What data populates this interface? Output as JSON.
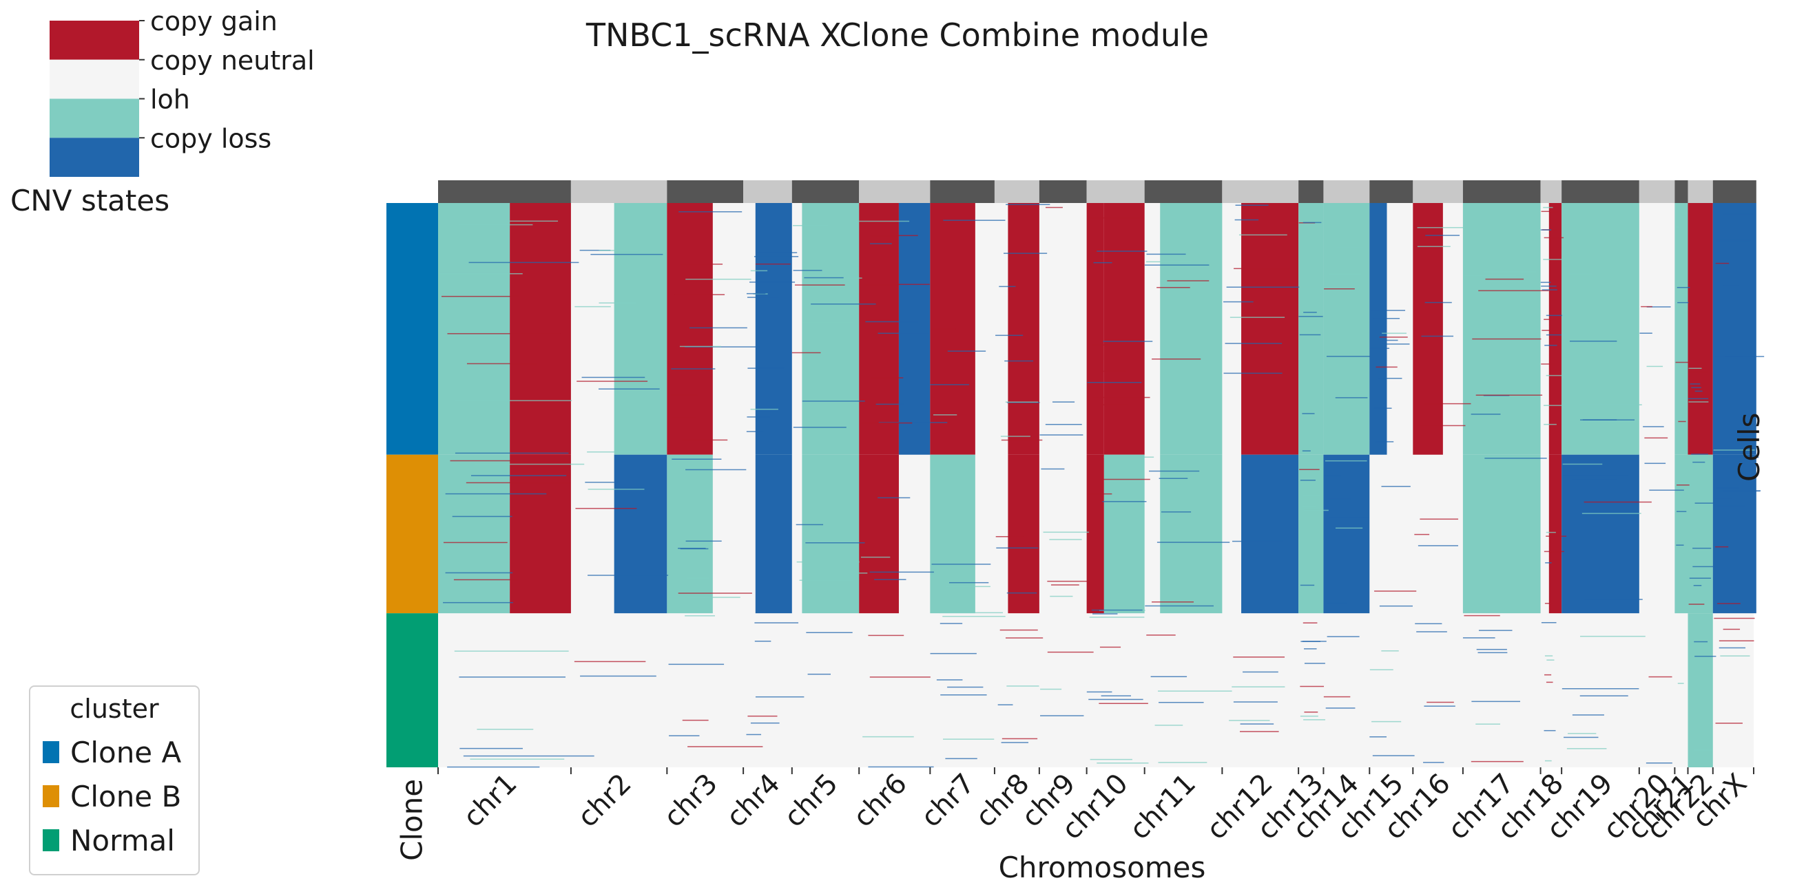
{
  "chart_data": {
    "type": "heatmap",
    "title": "TNBC1_scRNA XClone Combine module",
    "xlabel": "Chromosomes",
    "ylabel": "Cells",
    "clone_axis_label": "Clone",
    "cnv_legend": {
      "title": "CNV states",
      "states": [
        {
          "label": "copy gain",
          "color": "#b2182b"
        },
        {
          "label": "copy neutral",
          "color": "#f5f5f5"
        },
        {
          "label": "loh",
          "color": "#80cdc1"
        },
        {
          "label": "copy loss",
          "color": "#2166ac"
        }
      ]
    },
    "cluster_legend": {
      "title": "cluster",
      "items": [
        {
          "label": "Clone A",
          "color": "#0173b2"
        },
        {
          "label": "Clone B",
          "color": "#de8f05"
        },
        {
          "label": "Normal",
          "color": "#029e73"
        }
      ]
    },
    "clone_fractions": {
      "Clone A": 0.446,
      "Clone B": 0.281,
      "Normal": 0.273
    },
    "chromosomes": [
      "chr1",
      "chr2",
      "chr3",
      "chr4",
      "chr5",
      "chr6",
      "chr7",
      "chr8",
      "chr9",
      "chr10",
      "chr11",
      "chr12",
      "chr13",
      "chr14",
      "chr15",
      "chr16",
      "chr17",
      "chr18",
      "chr19",
      "chr20",
      "chr21",
      "chr22",
      "chrX"
    ],
    "chromosome_width_fraction": [
      0.101,
      0.073,
      0.058,
      0.037,
      0.051,
      0.054,
      0.049,
      0.034,
      0.036,
      0.044,
      0.059,
      0.058,
      0.019,
      0.035,
      0.033,
      0.038,
      0.059,
      0.016,
      0.059,
      0.027,
      0.01,
      0.019,
      0.033
    ],
    "state_blocks": [
      {
        "chr": "chr1",
        "from": 0.0,
        "to": 0.54,
        "clones": {
          "Clone A": "loh",
          "Clone B": "loh",
          "Normal": "copy neutral"
        }
      },
      {
        "chr": "chr1",
        "from": 0.54,
        "to": 1.0,
        "clones": {
          "Clone A": "copy gain",
          "Clone B": "copy gain",
          "Normal": "copy neutral"
        }
      },
      {
        "chr": "chr2",
        "from": 0.45,
        "to": 1.0,
        "clones": {
          "Clone A": "loh",
          "Clone B": "copy loss",
          "Normal": "copy neutral"
        }
      },
      {
        "chr": "chr3",
        "from": 0.0,
        "to": 0.6,
        "clones": {
          "Clone A": "copy gain",
          "Clone B": "loh",
          "Normal": "copy neutral"
        }
      },
      {
        "chr": "chr4",
        "from": 0.25,
        "to": 1.0,
        "clones": {
          "Clone A": "copy loss",
          "Clone B": "copy loss",
          "Normal": "copy neutral"
        }
      },
      {
        "chr": "chr5",
        "from": 0.15,
        "to": 1.0,
        "clones": {
          "Clone A": "loh",
          "Clone B": "loh",
          "Normal": "copy neutral"
        }
      },
      {
        "chr": "chr6",
        "from": 0.0,
        "to": 0.56,
        "clones": {
          "Clone A": "copy gain",
          "Clone B": "copy gain",
          "Normal": "copy neutral"
        }
      },
      {
        "chr": "chr6",
        "from": 0.56,
        "to": 1.0,
        "clones": {
          "Clone A": "copy loss",
          "Clone B": "copy neutral",
          "Normal": "copy neutral"
        }
      },
      {
        "chr": "chr7",
        "from": 0.0,
        "to": 0.7,
        "clones": {
          "Clone A": "copy gain",
          "Clone B": "loh",
          "Normal": "copy neutral"
        }
      },
      {
        "chr": "chr8",
        "from": 0.3,
        "to": 1.0,
        "clones": {
          "Clone A": "copy gain",
          "Clone B": "copy gain",
          "Normal": "copy neutral"
        }
      },
      {
        "chr": "chr10",
        "from": 0.0,
        "to": 0.3,
        "clones": {
          "Clone A": "copy gain",
          "Clone B": "copy gain",
          "Normal": "copy neutral"
        }
      },
      {
        "chr": "chr10",
        "from": 0.3,
        "to": 1.0,
        "clones": {
          "Clone A": "copy gain",
          "Clone B": "loh",
          "Normal": "copy neutral"
        }
      },
      {
        "chr": "chr11",
        "from": 0.2,
        "to": 1.0,
        "clones": {
          "Clone A": "loh",
          "Clone B": "loh",
          "Normal": "copy neutral"
        }
      },
      {
        "chr": "chr12",
        "from": 0.25,
        "to": 1.0,
        "clones": {
          "Clone A": "copy gain",
          "Clone B": "copy loss",
          "Normal": "copy neutral"
        }
      },
      {
        "chr": "chr13",
        "from": 0.0,
        "to": 1.0,
        "clones": {
          "Clone A": "loh",
          "Clone B": "loh",
          "Normal": "copy neutral"
        }
      },
      {
        "chr": "chr14",
        "from": 0.0,
        "to": 1.0,
        "clones": {
          "Clone A": "loh",
          "Clone B": "copy loss",
          "Normal": "copy neutral"
        }
      },
      {
        "chr": "chr15",
        "from": 0.0,
        "to": 0.4,
        "clones": {
          "Clone A": "copy loss",
          "Clone B": "copy neutral",
          "Normal": "copy neutral"
        }
      },
      {
        "chr": "chr16",
        "from": 0.0,
        "to": 0.6,
        "clones": {
          "Clone A": "copy gain",
          "Clone B": "copy neutral",
          "Normal": "copy neutral"
        }
      },
      {
        "chr": "chr17",
        "from": 0.0,
        "to": 1.0,
        "clones": {
          "Clone A": "loh",
          "Clone B": "loh",
          "Normal": "copy neutral"
        }
      },
      {
        "chr": "chr18",
        "from": 0.4,
        "to": 1.0,
        "clones": {
          "Clone A": "copy gain",
          "Clone B": "copy gain",
          "Normal": "copy neutral"
        }
      },
      {
        "chr": "chr19",
        "from": 0.0,
        "to": 1.0,
        "clones": {
          "Clone A": "loh",
          "Clone B": "copy loss",
          "Normal": "copy neutral"
        }
      },
      {
        "chr": "chr21",
        "from": 0.0,
        "to": 1.0,
        "clones": {
          "Clone A": "loh",
          "Clone B": "loh",
          "Normal": "copy neutral"
        }
      },
      {
        "chr": "chr22",
        "from": 0.0,
        "to": 1.0,
        "clones": {
          "Clone A": "copy gain",
          "Clone B": "loh",
          "Normal": "loh"
        }
      },
      {
        "chr": "chrX",
        "from": 0.0,
        "to": 1.0,
        "clones": {
          "Clone A": "copy loss",
          "Clone B": "copy loss",
          "Normal": "copy neutral"
        }
      }
    ],
    "grid": false
  }
}
